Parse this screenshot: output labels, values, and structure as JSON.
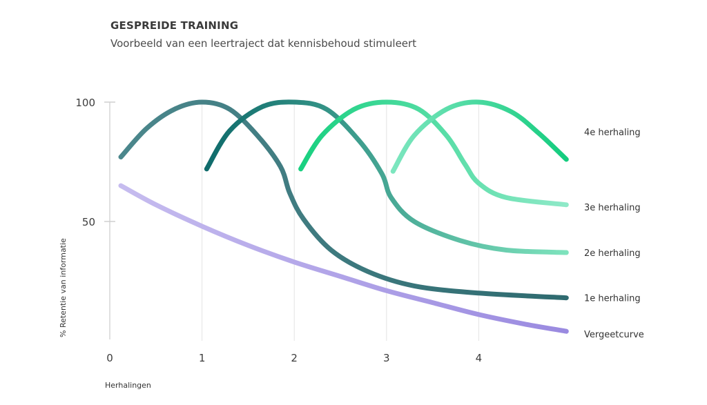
{
  "chart_data": {
    "type": "line",
    "title": "GESPREIDE TRAINING",
    "subtitle": "Voorbeeld van een leertraject dat kennisbehoud stimuleert",
    "xlabel": "Herhalingen",
    "ylabel": "% Retentie van informatie",
    "x_ticks": [
      "0",
      "1",
      "2",
      "3",
      "4"
    ],
    "y_ticks": [
      "50",
      "100"
    ],
    "xlim": [
      0,
      4.95
    ],
    "ylim": [
      0,
      100
    ],
    "grid": "vertical",
    "series": [
      {
        "name": "Vergeetcurve",
        "color": "#9a8ae0",
        "color_start": "#c6bcef",
        "points": [
          [
            0.12,
            65
          ],
          [
            0.5,
            57
          ],
          [
            1,
            48
          ],
          [
            1.5,
            40
          ],
          [
            2,
            33
          ],
          [
            2.5,
            27
          ],
          [
            3,
            21
          ],
          [
            3.5,
            16
          ],
          [
            4,
            11
          ],
          [
            4.5,
            7
          ],
          [
            4.95,
            4
          ]
        ]
      },
      {
        "name": "1e herhaling",
        "color": "#2f6b70",
        "color_start": "#4b878c",
        "points": [
          [
            0.12,
            77
          ],
          [
            0.4,
            89
          ],
          [
            0.7,
            97
          ],
          [
            1,
            100
          ],
          [
            1.3,
            97
          ],
          [
            1.6,
            86
          ],
          [
            1.85,
            73
          ],
          [
            1.95,
            62
          ],
          [
            2.1,
            51
          ],
          [
            2.4,
            38
          ],
          [
            2.8,
            29
          ],
          [
            3.3,
            23
          ],
          [
            4,
            20
          ],
          [
            4.95,
            18
          ]
        ]
      },
      {
        "name": "2e herhaling",
        "color": "#7ee3bd",
        "color_start": "#0f6b6b",
        "points": [
          [
            1.05,
            72
          ],
          [
            1.3,
            88
          ],
          [
            1.65,
            98
          ],
          [
            2,
            100
          ],
          [
            2.35,
            97
          ],
          [
            2.7,
            84
          ],
          [
            2.95,
            70
          ],
          [
            3.05,
            60
          ],
          [
            3.3,
            50
          ],
          [
            3.8,
            42
          ],
          [
            4.3,
            38
          ],
          [
            4.95,
            37
          ]
        ]
      },
      {
        "name": "3e herhaling",
        "color": "#8fe9c8",
        "color_start": "#19d080",
        "points": [
          [
            2.07,
            72
          ],
          [
            2.3,
            86
          ],
          [
            2.65,
            97
          ],
          [
            3,
            100
          ],
          [
            3.35,
            97
          ],
          [
            3.65,
            86
          ],
          [
            3.85,
            74
          ],
          [
            4,
            66
          ],
          [
            4.3,
            60
          ],
          [
            4.95,
            57
          ]
        ]
      },
      {
        "name": "4e herhaling",
        "color": "#14cc7e",
        "color_start": "#7de6bf",
        "points": [
          [
            3.07,
            71
          ],
          [
            3.3,
            86
          ],
          [
            3.65,
            97
          ],
          [
            4,
            100
          ],
          [
            4.35,
            96
          ],
          [
            4.65,
            87
          ],
          [
            4.95,
            76
          ]
        ]
      }
    ]
  }
}
